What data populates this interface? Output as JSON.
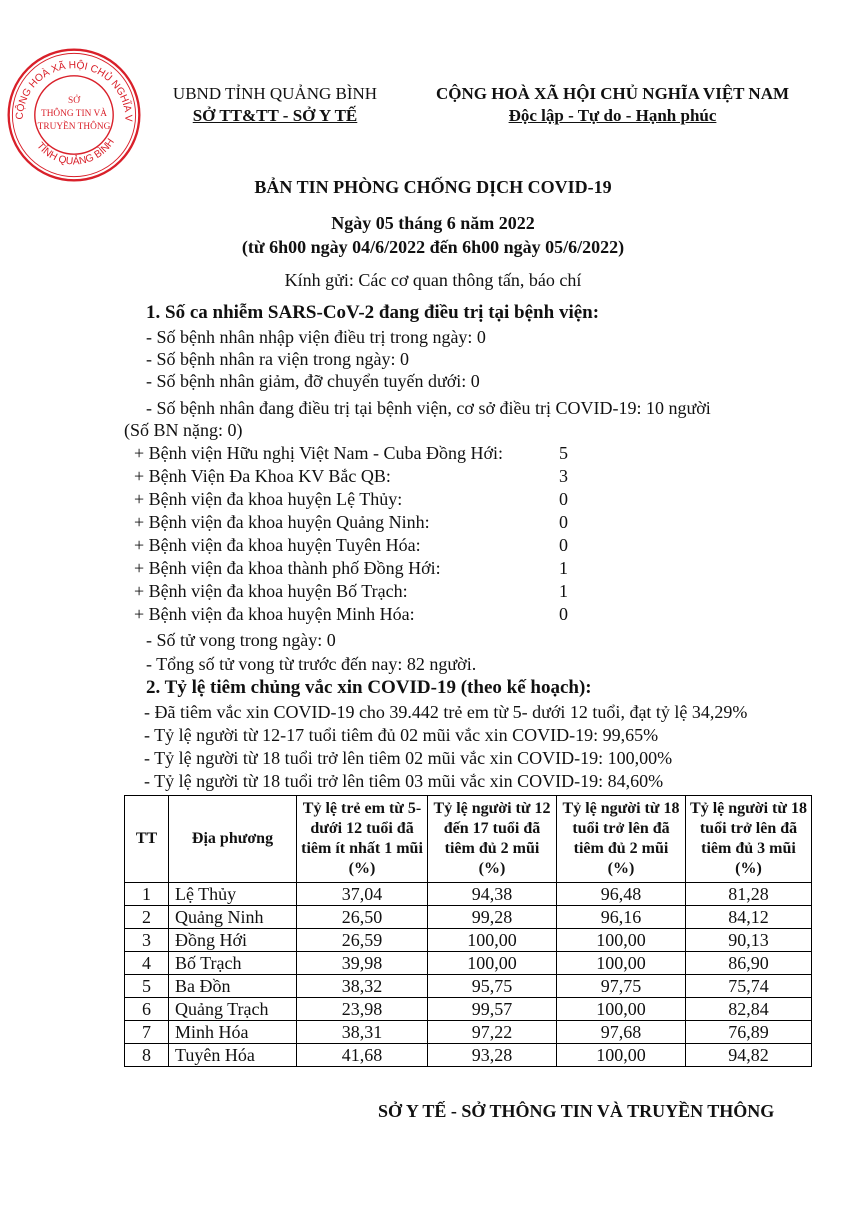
{
  "header": {
    "left_line1": "UBND TỈNH QUẢNG BÌNH",
    "left_line2": "SỞ TT&TT - SỞ Y TẾ",
    "right_line1": "CỘNG HOÀ XÃ HỘI CHỦ NGHĨA VIỆT NAM",
    "right_line2": "Độc lập - Tự do - Hạnh phúc"
  },
  "stamp": {
    "ring_text": "CỘNG HOÀ XÃ HỘI CHỦ NGHĨA VIỆT NAM",
    "bottom_text": "TỈNH QUẢNG BÌNH",
    "center_lines": [
      "SỞ",
      "THÔNG TIN VÀ",
      "TRUYỀN THÔNG"
    ],
    "color": "#d9202a"
  },
  "title": "BẢN TIN PHÒNG CHỐNG DỊCH COVID-19",
  "date": "Ngày 05 tháng 6 năm 2022",
  "range": "(từ 6h00 ngày 04/6/2022 đến 6h00 ngày 05/6/2022)",
  "greeting": "Kính gửi: Các cơ quan thông tấn, báo chí",
  "section1": {
    "heading": "1. Số ca nhiễm SARS-CoV-2 đang điều trị tại bệnh viện:",
    "lines": [
      "- Số bệnh nhân nhập viện điều trị trong ngày: 0",
      "- Số bệnh nhân ra viện trong ngày: 0",
      "- Số bệnh nhân giảm, đỡ chuyển tuyến dưới: 0",
      "- Số bệnh nhân đang điều trị tại bệnh viện, cơ sở điều trị COVID-19: 10 người",
      "(Số BN nặng: 0)"
    ],
    "hospitals": [
      {
        "name": "+ Bệnh viện Hữu nghị Việt Nam - Cuba Đồng Hới:",
        "count": "5"
      },
      {
        "name": "+ Bệnh Viện Đa Khoa KV Bắc QB:",
        "count": "3"
      },
      {
        "name": "+ Bệnh viện đa khoa huyện Lệ Thủy:",
        "count": "0"
      },
      {
        "name": "+ Bệnh viện đa khoa huyện Quảng Ninh:",
        "count": "0"
      },
      {
        "name": "+ Bệnh viện đa khoa huyện Tuyên Hóa:",
        "count": "0"
      },
      {
        "name": "+ Bệnh viện đa khoa thành phố Đồng Hới:",
        "count": "1"
      },
      {
        "name": "+ Bệnh viện đa khoa huyện Bố Trạch:",
        "count": "1"
      },
      {
        "name": "+ Bệnh viện đa khoa huyện Minh Hóa:",
        "count": "0"
      }
    ],
    "deaths": [
      "- Số tử vong trong ngày: 0",
      "- Tổng số tử vong từ trước đến nay: 82 người."
    ]
  },
  "section2": {
    "heading": "2. Tỷ lệ tiêm chủng vắc xin COVID-19 (theo kế hoạch):",
    "lines": [
      "- Đã tiêm vắc xin COVID-19 cho 39.442 trẻ em từ 5- dưới 12 tuổi, đạt tỷ lệ 34,29%",
      "- Tỷ lệ người từ 12-17 tuổi tiêm đủ 02 mũi vắc xin COVID-19: 99,65%",
      "- Tỷ lệ người từ 18 tuổi trở lên tiêm 02 mũi vắc xin COVID-19: 100,00%",
      "- Tỷ lệ người từ 18 tuổi trở lên tiêm 03 mũi vắc xin COVID-19: 84,60%"
    ]
  },
  "table": {
    "headers": [
      "TT",
      "Địa phương",
      "Tỷ lệ trẻ em từ 5- dưới 12 tuổi đã tiêm ít nhất 1 mũi (%)",
      "Tỷ lệ người từ 12 đến 17 tuổi đã tiêm đủ 2 mũi (%)",
      "Tỷ lệ người từ 18 tuổi trở lên đã tiêm đủ 2 mũi (%)",
      "Tỷ lệ người từ 18 tuổi trở lên đã tiêm đủ 3 mũi (%)"
    ],
    "rows": [
      [
        "1",
        "Lệ Thủy",
        "37,04",
        "94,38",
        "96,48",
        "81,28"
      ],
      [
        "2",
        "Quảng Ninh",
        "26,50",
        "99,28",
        "96,16",
        "84,12"
      ],
      [
        "3",
        "Đồng Hới",
        "26,59",
        "100,00",
        "100,00",
        "90,13"
      ],
      [
        "4",
        "Bố Trạch",
        "39,98",
        "100,00",
        "100,00",
        "86,90"
      ],
      [
        "5",
        "Ba Đồn",
        "38,32",
        "95,75",
        "97,75",
        "75,74"
      ],
      [
        "6",
        "Quảng Trạch",
        "23,98",
        "99,57",
        "100,00",
        "82,84"
      ],
      [
        "7",
        "Minh Hóa",
        "38,31",
        "97,22",
        "97,68",
        "76,89"
      ],
      [
        "8",
        "Tuyên Hóa",
        "41,68",
        "93,28",
        "100,00",
        "94,82"
      ]
    ]
  },
  "footer": "SỞ Y TẾ -  SỞ THÔNG TIN VÀ TRUYỀN THÔNG"
}
